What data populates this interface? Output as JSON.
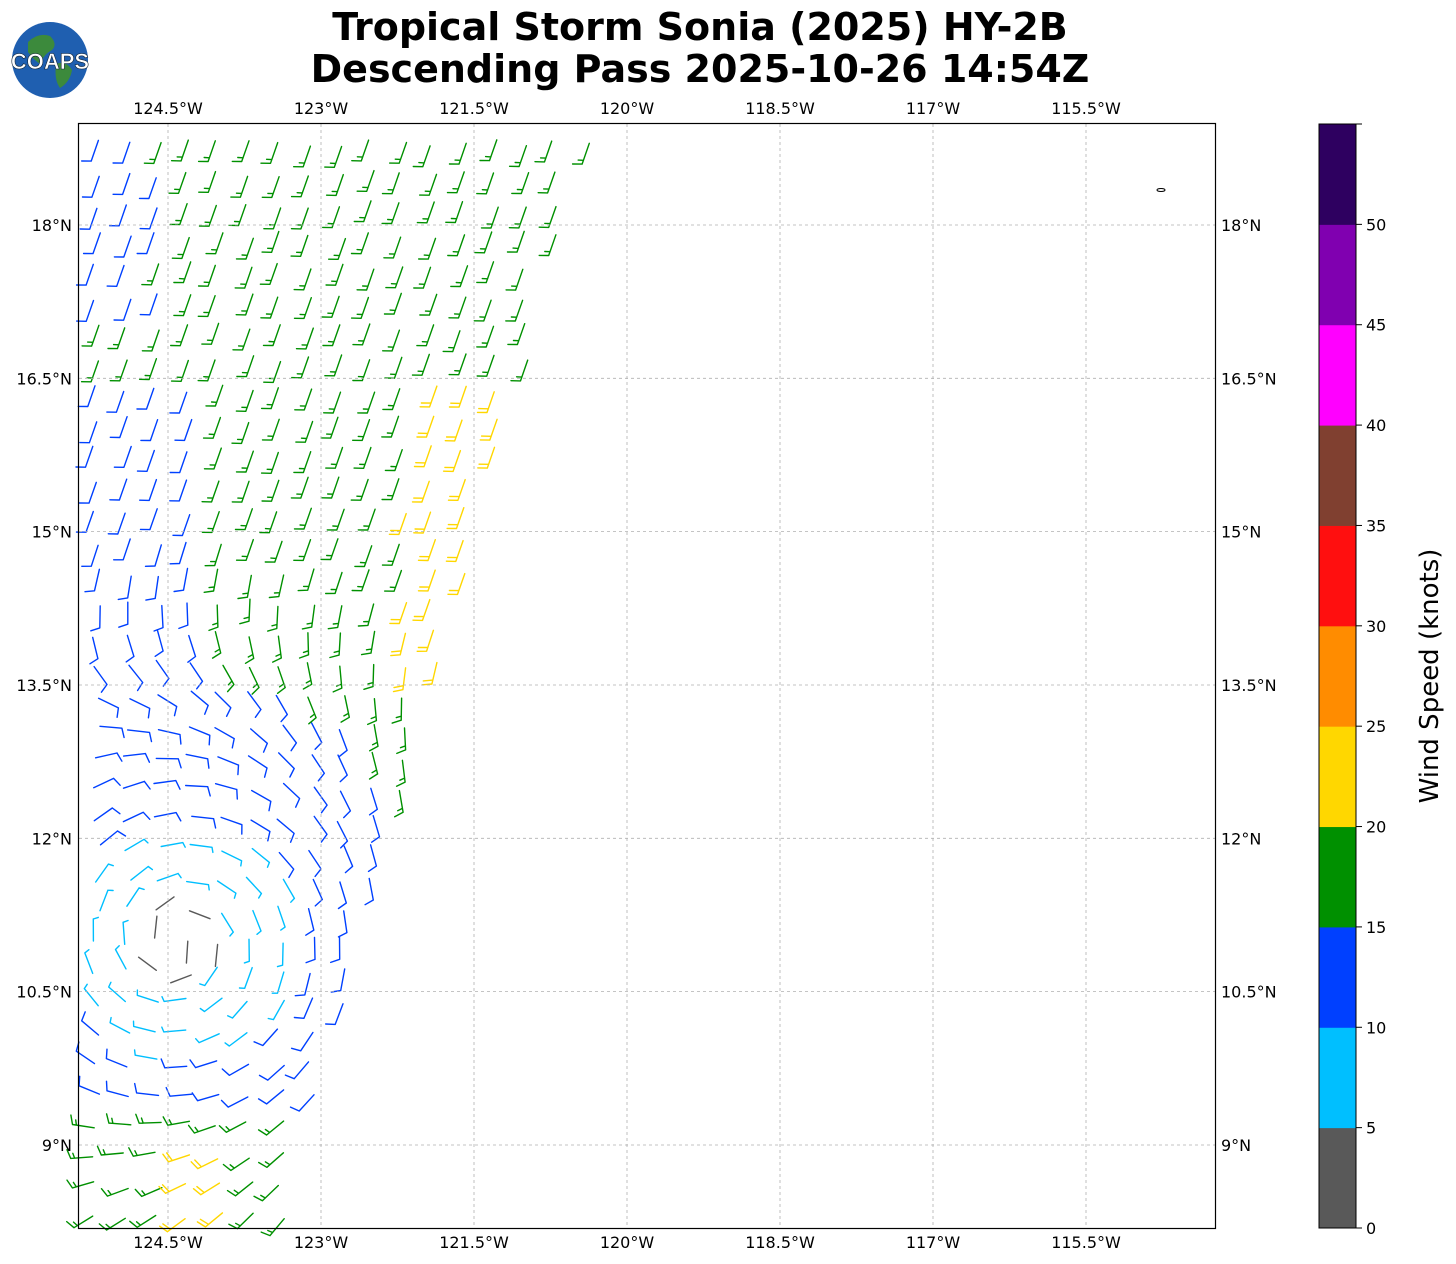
{
  "title": {
    "line1": "Tropical Storm Sonia (2025) HY-2B",
    "line2": "Descending Pass 2025-10-26 14:54Z"
  },
  "logo": {
    "text": "COAPS",
    "icon": "globe-icon"
  },
  "map": {
    "lon_ticks": [
      {
        "value": -124.5,
        "label": "124.5°W"
      },
      {
        "value": -123.0,
        "label": "123°W"
      },
      {
        "value": -121.5,
        "label": "121.5°W"
      },
      {
        "value": -120.0,
        "label": "120°W"
      },
      {
        "value": -118.5,
        "label": "118.5°W"
      },
      {
        "value": -117.0,
        "label": "117°W"
      },
      {
        "value": -115.5,
        "label": "115.5°W"
      }
    ],
    "lat_ticks": [
      {
        "value": 18.0,
        "label": "18°N"
      },
      {
        "value": 16.5,
        "label": "16.5°N"
      },
      {
        "value": 15.0,
        "label": "15°N"
      },
      {
        "value": 13.5,
        "label": "13.5°N"
      },
      {
        "value": 12.0,
        "label": "12°N"
      },
      {
        "value": 10.5,
        "label": "10.5°N"
      },
      {
        "value": 9.0,
        "label": "9°N"
      }
    ],
    "lon_range": [
      -125.25,
      -114.1
    ],
    "lat_range": [
      8.2,
      19.0
    ],
    "grid": true
  },
  "colorbar": {
    "label": "Wind Speed (knots)",
    "ticks": [
      "0",
      "5",
      "10",
      "15",
      "20",
      "25",
      "30",
      "35",
      "40",
      "45",
      "50"
    ],
    "bins": [
      {
        "min": 0,
        "max": 5,
        "color": "#595959"
      },
      {
        "min": 5,
        "max": 10,
        "color": "#00bfff"
      },
      {
        "min": 10,
        "max": 15,
        "color": "#0040ff"
      },
      {
        "min": 15,
        "max": 20,
        "color": "#009000"
      },
      {
        "min": 20,
        "max": 25,
        "color": "#ffd700"
      },
      {
        "min": 25,
        "max": 30,
        "color": "#ff8c00"
      },
      {
        "min": 30,
        "max": 35,
        "color": "#ff0f0f"
      },
      {
        "min": 35,
        "max": 40,
        "color": "#804030"
      },
      {
        "min": 40,
        "max": 45,
        "color": "#ff00ff"
      },
      {
        "min": 45,
        "max": 50,
        "color": "#8000b0"
      },
      {
        "min": 50,
        "max": 55,
        "color": "#2e0060"
      }
    ]
  },
  "wind_field": {
    "storm_center": [
      -124.4,
      11.0
    ],
    "swath_east_edge": [
      [
        -123.4,
        8.3
      ],
      [
        -120.3,
        19.0
      ]
    ],
    "swath_bottom_east": [
      [
        -124.0,
        8.3
      ],
      [
        -123.4,
        8.3
      ]
    ],
    "speed_zones": [
      {
        "name": "north-green",
        "lat_min": 13.3,
        "speed": 17
      },
      {
        "name": "yellow-band",
        "lat_min": 13.6,
        "lat_max": 16.6,
        "lon_min": -122.2,
        "speed": 22
      },
      {
        "name": "blue-west",
        "lon_max": -124.2,
        "lat_min": 12.0,
        "speed": 12
      },
      {
        "name": "south-green",
        "lat_max": 9.4,
        "speed": 16
      }
    ]
  }
}
